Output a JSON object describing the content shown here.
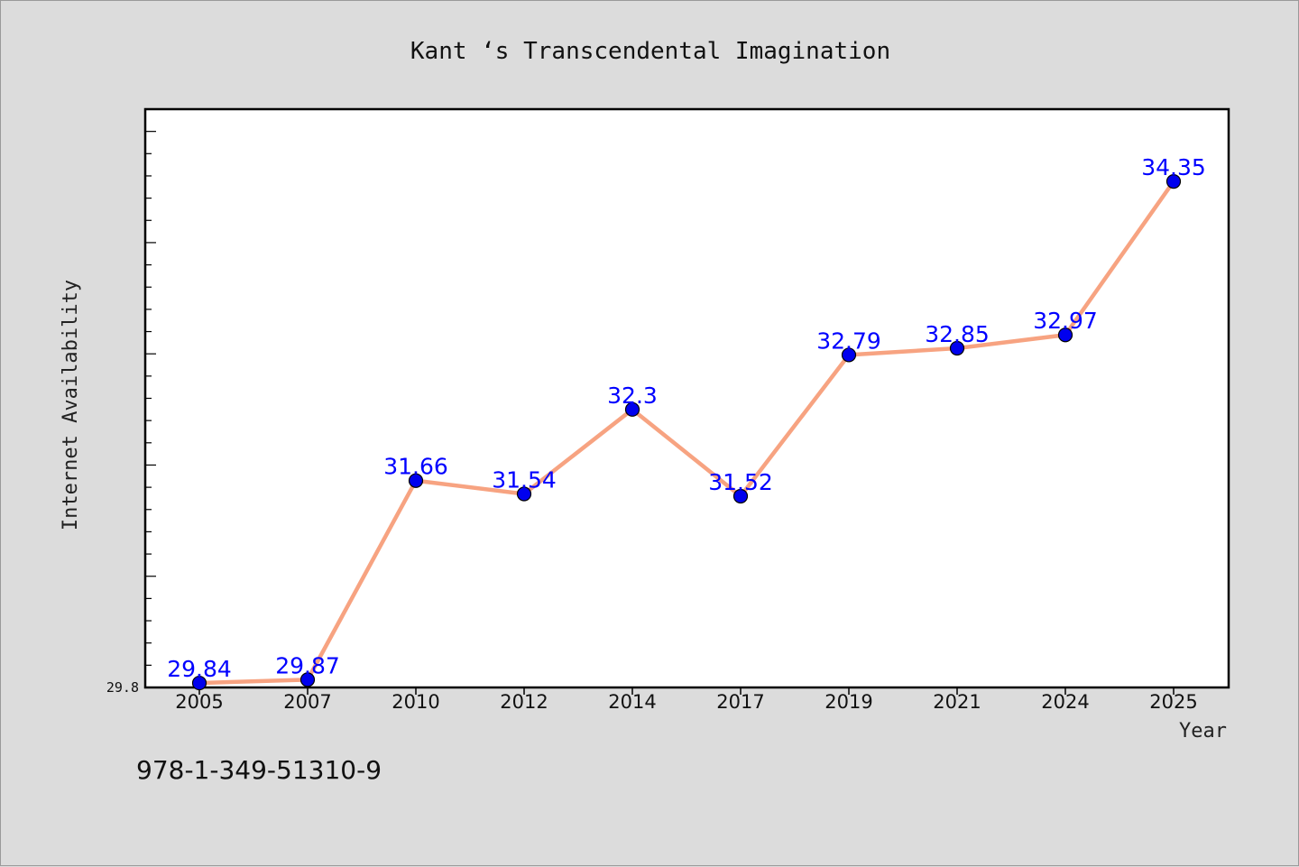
{
  "chart_data": {
    "type": "line",
    "title": "Kant ‘s Transcendental Imagination",
    "xlabel": "Year",
    "ylabel": "Internet Availability",
    "categories": [
      "2005",
      "2007",
      "2010",
      "2012",
      "2014",
      "2017",
      "2019",
      "2021",
      "2024",
      "2025"
    ],
    "series": [
      {
        "values": [
          29.84,
          29.87,
          31.66,
          31.54,
          32.3,
          31.52,
          32.79,
          32.85,
          32.97,
          34.35
        ],
        "labels": [
          "29.84",
          "29.87",
          "31.66",
          "31.54",
          "32.3",
          "31.52",
          "32.79",
          "32.85",
          "32.97",
          "34.35"
        ]
      }
    ],
    "ylim": [
      29.8,
      35.0
    ],
    "yticks": [
      "29.8"
    ],
    "grid": false,
    "legend": "none",
    "colors": {
      "line": "#f7a381",
      "marker": "#0000ee",
      "data_label": "#0000ff",
      "background": "#dcdcdc",
      "plot_background": "#ffffff"
    }
  },
  "footer": {
    "isbn": "978-1-349-51310-9"
  }
}
